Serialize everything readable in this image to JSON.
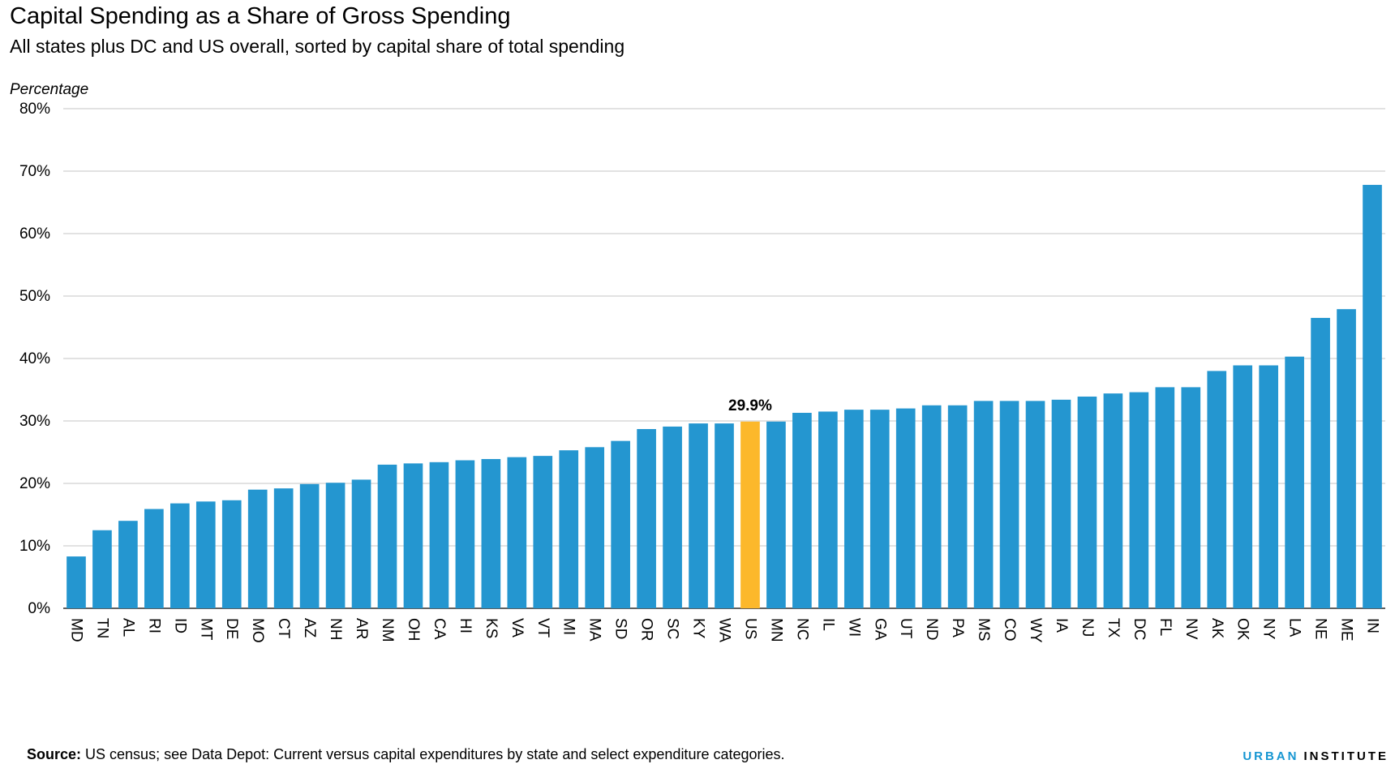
{
  "header": {
    "title": "Capital Spending as a Share of Gross Spending",
    "subtitle": "All states plus DC and US overall, sorted by capital share of total spending",
    "axis_label": "Percentage"
  },
  "footer": {
    "source_label": "Source:",
    "source_text": " US census; see Data Depot: Current versus capital expenditures by state and select expenditure categories.",
    "logo_part1": "URBAN",
    "logo_part2": "INSTITUTE"
  },
  "colors": {
    "bar": "#2496d0",
    "highlight": "#fcb82b",
    "grid": "#d9d9d9"
  },
  "chart_data": {
    "type": "bar",
    "title": "Capital Spending as a Share of Gross Spending",
    "subtitle": "All states plus DC and US overall, sorted by capital share of total spending",
    "ylabel": "Percentage",
    "xlabel": "",
    "ylim": [
      0,
      80
    ],
    "yticks": [
      0,
      10,
      20,
      30,
      40,
      50,
      60,
      70,
      80
    ],
    "ytick_labels": [
      "0%",
      "10%",
      "20%",
      "30%",
      "40%",
      "50%",
      "60%",
      "70%",
      "80%"
    ],
    "grid": true,
    "categories": [
      "MD",
      "TN",
      "AL",
      "RI",
      "ID",
      "MT",
      "DE",
      "MO",
      "CT",
      "AZ",
      "NH",
      "AR",
      "NM",
      "OH",
      "CA",
      "HI",
      "KS",
      "VA",
      "VT",
      "MI",
      "MA",
      "SD",
      "OR",
      "SC",
      "KY",
      "WA",
      "US",
      "MN",
      "NC",
      "IL",
      "WI",
      "GA",
      "UT",
      "ND",
      "PA",
      "MS",
      "CO",
      "WY",
      "IA",
      "NJ",
      "TX",
      "DC",
      "FL",
      "NV",
      "AK",
      "OK",
      "NY",
      "LA",
      "NE",
      "ME",
      "IN"
    ],
    "values": [
      8.3,
      12.5,
      14.0,
      15.9,
      16.8,
      17.1,
      17.3,
      19.0,
      19.2,
      19.9,
      20.1,
      20.6,
      23.0,
      23.2,
      23.4,
      23.7,
      23.9,
      24.2,
      24.4,
      25.3,
      25.8,
      26.8,
      28.7,
      29.1,
      29.6,
      29.6,
      29.9,
      29.9,
      31.3,
      31.5,
      31.8,
      31.8,
      32.0,
      32.5,
      32.5,
      33.2,
      33.2,
      33.2,
      33.4,
      33.9,
      34.4,
      34.6,
      35.4,
      35.4,
      38.0,
      38.9,
      38.9,
      40.3,
      46.5,
      47.9,
      67.8
    ],
    "highlight_category": "US",
    "annotation": "29.9%"
  }
}
